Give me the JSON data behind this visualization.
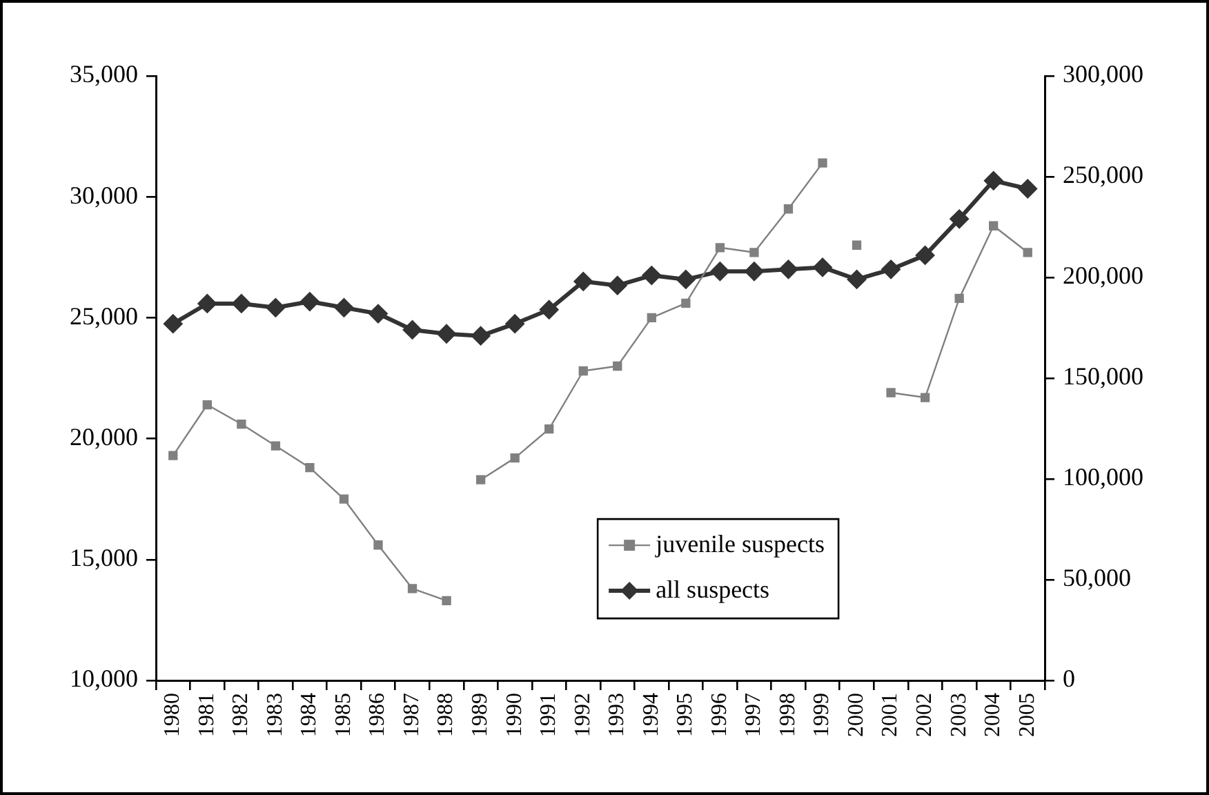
{
  "chart_data": {
    "type": "line",
    "categories": [
      "1980",
      "1981",
      "1982",
      "1983",
      "1984",
      "1985",
      "1986",
      "1987",
      "1988",
      "1989",
      "1990",
      "1991",
      "1992",
      "1993",
      "1994",
      "1995",
      "1996",
      "1997",
      "1998",
      "1999",
      "2000",
      "2001",
      "2002",
      "2003",
      "2004",
      "2005"
    ],
    "series": [
      {
        "name": "juvenile suspects",
        "color": "#808080",
        "marker": "square",
        "values": [
          null,
          null,
          null,
          null,
          null,
          null,
          null,
          null,
          null,
          18300,
          19200,
          20400,
          22800,
          23000,
          25000,
          25600,
          27900,
          27700,
          29500,
          31400,
          null,
          null,
          null,
          null,
          null,
          null
        ]
      },
      {
        "color": "#808080",
        "marker": "square",
        "values": [
          null,
          null,
          null,
          null,
          null,
          null,
          null,
          null,
          null,
          null,
          null,
          null,
          null,
          null,
          null,
          null,
          null,
          null,
          null,
          null,
          28000,
          null,
          null,
          null,
          null,
          null
        ]
      },
      {
        "color": "#808080",
        "marker": "square",
        "values": [
          19300,
          21400,
          20600,
          19700,
          18800,
          17500,
          15600,
          13800,
          13300,
          null,
          null,
          null,
          null,
          null,
          null,
          null,
          null,
          null,
          null,
          null,
          null,
          21900,
          21700,
          25800,
          28800,
          27700
        ]
      },
      {
        "name": "all suspects",
        "color": "#333333",
        "marker": "diamond",
        "axis": "y2",
        "values": [
          177000,
          187000,
          187000,
          185000,
          188000,
          185000,
          182000,
          174000,
          172000,
          171000,
          177000,
          184000,
          198000,
          196000,
          201000,
          199000,
          203000,
          203000,
          204000,
          205000,
          199000,
          204000,
          211000,
          229000,
          248000,
          244000
        ]
      }
    ],
    "ylim": [
      10000,
      35000
    ],
    "yticks": [
      {
        "value": 10000,
        "label": "10,000"
      },
      {
        "value": 15000,
        "label": "15,000"
      },
      {
        "value": 20000,
        "label": "20,000"
      },
      {
        "value": 25000,
        "label": "25,000"
      },
      {
        "value": 30000,
        "label": "30,000"
      },
      {
        "value": 35000,
        "label": "35,000"
      }
    ],
    "y2lim": [
      0,
      300000
    ],
    "y2ticks": [
      0,
      {
        "value": 50000,
        "label": "50,000"
      },
      {
        "value": 100000,
        "label": "100,000"
      },
      {
        "value": 150000,
        "label": "150,000"
      },
      {
        "value": 200000,
        "label": "200,000"
      },
      {
        "value": 250000,
        "label": "250,000"
      },
      {
        "value": 300000,
        "label": "300,000"
      }
    ],
    "grid": false,
    "legend": "bottom"
  }
}
